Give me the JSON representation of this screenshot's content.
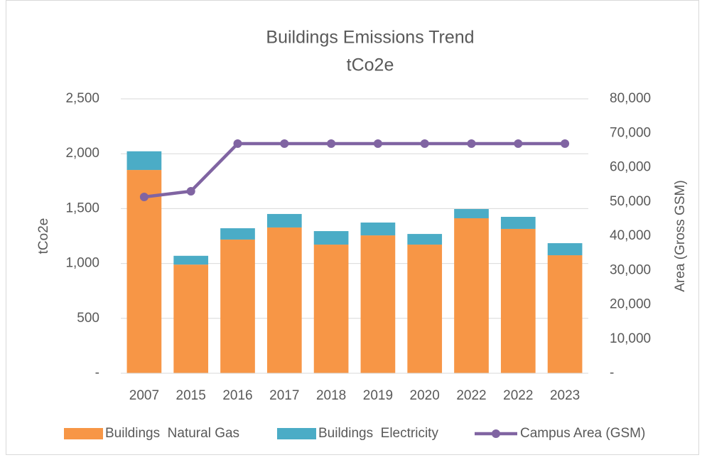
{
  "chart_data": {
    "type": "bar",
    "stacked": true,
    "title": "Buildings Emissions Trend",
    "subtitle": "tCo2e",
    "y_label": "tCo2e",
    "y2_label": "Area (Gross GSM)",
    "categories": [
      "2007",
      "2015",
      "2016",
      "2017",
      "2018",
      "2019",
      "2020",
      "2022",
      "2022",
      "2023"
    ],
    "series": [
      {
        "name": "Buildings  Natural Gas",
        "color": "#f79646",
        "type": "bar",
        "values": [
          1852,
          990,
          1218,
          1328,
          1172,
          1256,
          1172,
          1412,
          1315,
          1075
        ]
      },
      {
        "name": "Buildings  Electricity",
        "color": "#4bacc6",
        "type": "bar",
        "values": [
          170,
          80,
          103,
          123,
          123,
          117,
          97,
          84,
          110,
          110
        ]
      },
      {
        "name": "Campus Area (GSM)",
        "color": "#8064a2",
        "type": "line",
        "axis": "y2",
        "values": [
          51400,
          53060,
          66940,
          66940,
          66940,
          66940,
          66940,
          66940,
          66940,
          66940
        ]
      }
    ],
    "ylim": [
      0,
      2500
    ],
    "yticks": [
      {
        "value": 0,
        "label": "-"
      },
      500,
      {
        "value": 1000,
        "label": "1,000"
      },
      {
        "value": 1500,
        "label": "1,500"
      },
      {
        "value": 2000,
        "label": "2,000"
      },
      {
        "value": 2500,
        "label": "2,500"
      }
    ],
    "y2lim": [
      0,
      80000
    ],
    "y2ticks": [
      {
        "value": 0,
        "label": "-"
      },
      {
        "value": 10000,
        "label": "10,000"
      },
      {
        "value": 20000,
        "label": "20,000"
      },
      {
        "value": 30000,
        "label": "30,000"
      },
      {
        "value": 40000,
        "label": "40,000"
      },
      {
        "value": 50000,
        "label": "50,000"
      },
      {
        "value": 60000,
        "label": "60,000"
      },
      {
        "value": 70000,
        "label": "70,000"
      },
      {
        "value": 80000,
        "label": "80,000"
      }
    ],
    "grid": true,
    "legend": "bottom"
  }
}
